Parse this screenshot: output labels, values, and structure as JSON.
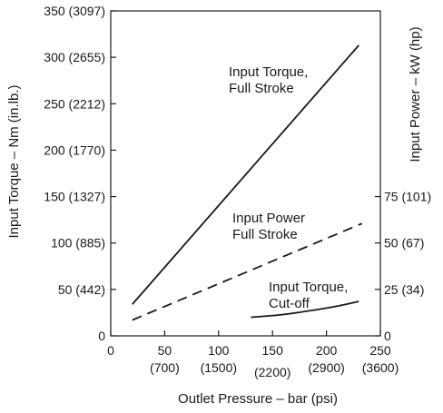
{
  "chart_data": {
    "type": "line",
    "xlabel": "Outlet Pressure – bar (psi)",
    "ylabel_left": "Input Torque – Nm (in.lb.)",
    "ylabel_right": "Input Power – kW (hp)",
    "xlim": [
      0,
      250
    ],
    "ylim_left": [
      0,
      350
    ],
    "ylim_right": [
      0,
      175
    ],
    "x_ticks": [
      {
        "value": 0,
        "label": "0",
        "sub": ""
      },
      {
        "value": 50,
        "label": "50",
        "sub": "(700)"
      },
      {
        "value": 100,
        "label": "100",
        "sub": "(1500)"
      },
      {
        "value": 150,
        "label": "150",
        "sub": "(2200)"
      },
      {
        "value": 200,
        "label": "200",
        "sub": "(2900)"
      },
      {
        "value": 250,
        "label": "250",
        "sub": "(3600)"
      }
    ],
    "y_left_ticks": [
      {
        "value": 0,
        "label": "0"
      },
      {
        "value": 50,
        "label": "50 (442)"
      },
      {
        "value": 100,
        "label": "100 (885)"
      },
      {
        "value": 150,
        "label": "150 (1327)"
      },
      {
        "value": 200,
        "label": "200 (1770)"
      },
      {
        "value": 250,
        "label": "250 (2212)"
      },
      {
        "value": 300,
        "label": "300 (2655)"
      },
      {
        "value": 350,
        "label": "350 (3097)"
      }
    ],
    "y_right_ticks": [
      {
        "value": 0,
        "label": "0"
      },
      {
        "value": 25,
        "label": "25 (34)"
      },
      {
        "value": 50,
        "label": "50 (67)"
      },
      {
        "value": 75,
        "label": "75 (101)"
      }
    ],
    "series": [
      {
        "name": "Input Torque, Full Stroke",
        "axis": "left",
        "style": "solid",
        "x": [
          20,
          230
        ],
        "y": [
          34,
          313
        ]
      },
      {
        "name": "Input Power Full Stroke",
        "axis": "right",
        "style": "dashed",
        "x": [
          20,
          233
        ],
        "y": [
          8.5,
          60.5
        ]
      },
      {
        "name": "Input Torque, Cut-off",
        "axis": "left",
        "style": "solid",
        "x": [
          130,
          160,
          190,
          210,
          230
        ],
        "y": [
          20,
          23,
          28,
          32,
          37
        ]
      }
    ],
    "annotations": [
      {
        "lines": [
          "Input Torque,",
          "Full Stroke"
        ]
      },
      {
        "lines": [
          "Input Power",
          "Full Stroke"
        ]
      },
      {
        "lines": [
          "Input Torque,",
          "Cut-off"
        ]
      }
    ],
    "grid": false,
    "line_color": "#1a1a1a"
  }
}
